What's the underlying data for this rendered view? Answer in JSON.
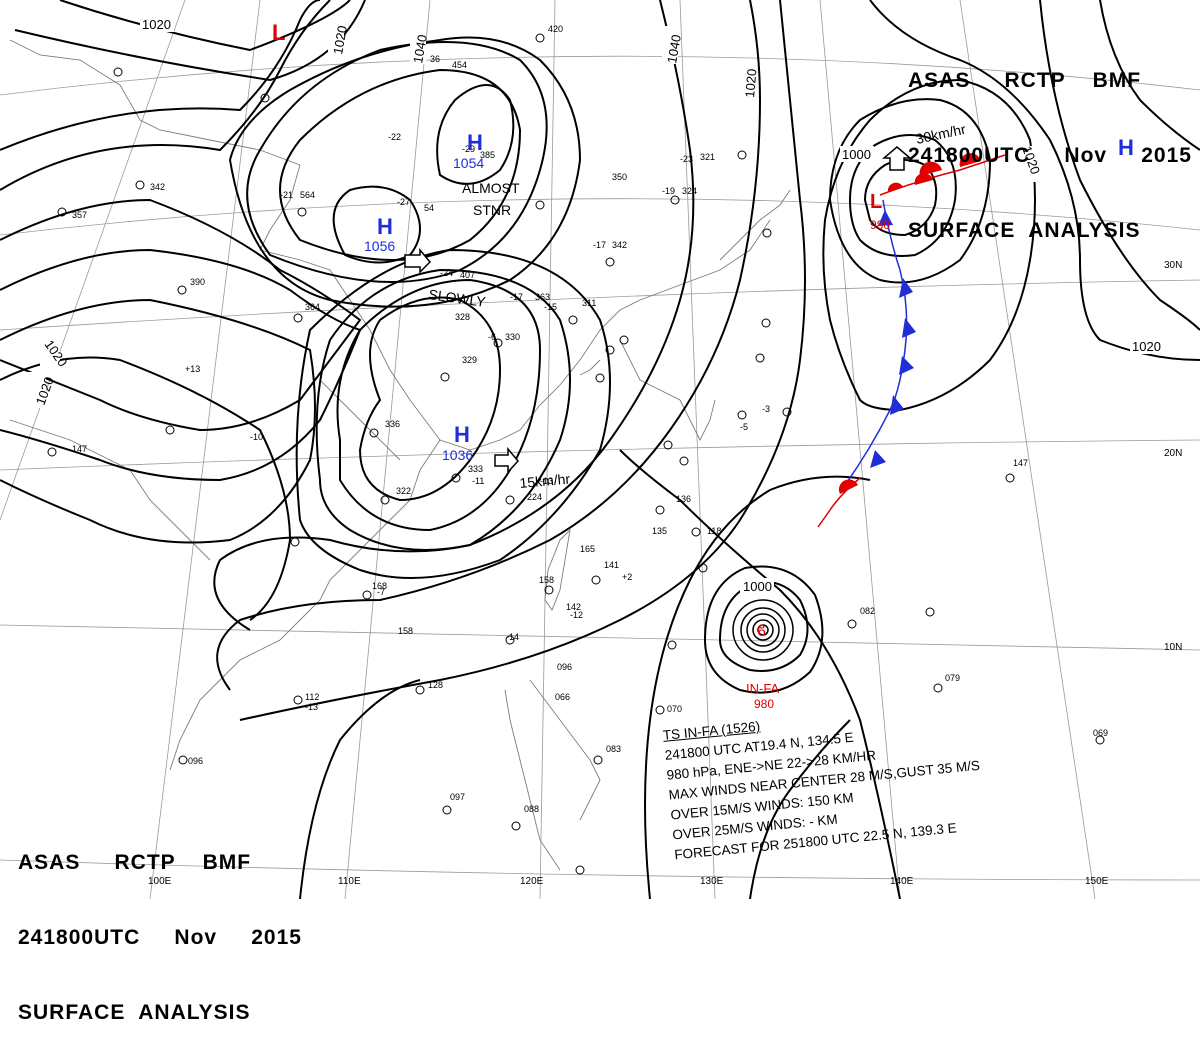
{
  "header": {
    "line1": "ASAS     RCTP    BMF",
    "line2": "241800UTC     Nov     2015",
    "line3": "SURFACE  ANALYSIS"
  },
  "isobar_labels": [
    "1020",
    "1020",
    "1040",
    "1040",
    "1020",
    "1000",
    "1020",
    "1020",
    "1020",
    "1000"
  ],
  "pressure_centers": [
    {
      "type": "H",
      "value": "1054",
      "color": "#1f2ed8"
    },
    {
      "type": "H",
      "value": "1056",
      "color": "#1f2ed8"
    },
    {
      "type": "H",
      "value": "1036",
      "color": "#1f2ed8"
    },
    {
      "type": "H",
      "value": "",
      "color": "#1f2ed8"
    },
    {
      "type": "L",
      "value": "",
      "color": "#e00000"
    },
    {
      "type": "L",
      "value": "980",
      "color": "#e00000"
    }
  ],
  "motion_labels": [
    "ALMOST",
    "STNR",
    "SLOWLY",
    "15km/hr",
    "30km/hr"
  ],
  "typhoon": {
    "name": "IN-FA",
    "pressure": "980",
    "color": "#e00000"
  },
  "lat_labels": [
    "30N",
    "20N",
    "10N"
  ],
  "lon_labels": [
    "100E",
    "110E",
    "120E",
    "130E",
    "140E",
    "150E"
  ],
  "stations": [
    "420",
    "454",
    "-29",
    "385",
    "-27",
    "54",
    "-22",
    "36",
    "-24",
    "407",
    "-17",
    "363",
    "311",
    "328",
    "330",
    "329",
    "336",
    "333",
    "322",
    "224",
    "136",
    "135",
    "141",
    "142",
    "158",
    "165",
    "118",
    "096",
    "066",
    "070",
    "097",
    "088",
    "082",
    "079",
    "069",
    "147",
    "1020",
    "-21",
    "564",
    "-19",
    "324",
    "342",
    "357",
    "390",
    "364",
    "147",
    "168",
    "158",
    "112",
    "128",
    "096",
    "083",
    "-23",
    "321",
    "350",
    "-17",
    "342",
    "-6",
    "-13",
    "-9",
    "-15",
    "-16",
    "-11",
    "-10",
    "+13",
    "+2",
    "-14",
    "-12",
    "-13",
    "-7",
    "-3",
    "-5",
    "-4"
  ],
  "ts_bulletin": {
    "title": "TS  IN-FA  (1526)",
    "l1": "241800 UTC  AT19.4 N, 134.5 E",
    "l2": "980 hPa, ENE->NE  22->28 KM/HR",
    "l3": "MAX WINDS NEAR CENTER 28 M/S,GUST 35 M/S",
    "l4": "OVER 15M/S WINDS: 150 KM",
    "l5": "OVER 25M/S WINDS: - KM",
    "l6": "FORECAST FOR 251800 UTC 22.5 N, 139.3 E"
  },
  "colors": {
    "high": "#1f2ed8",
    "low": "#e00000",
    "cold_front": "#1f2ed8",
    "warm_front": "#e00000"
  }
}
